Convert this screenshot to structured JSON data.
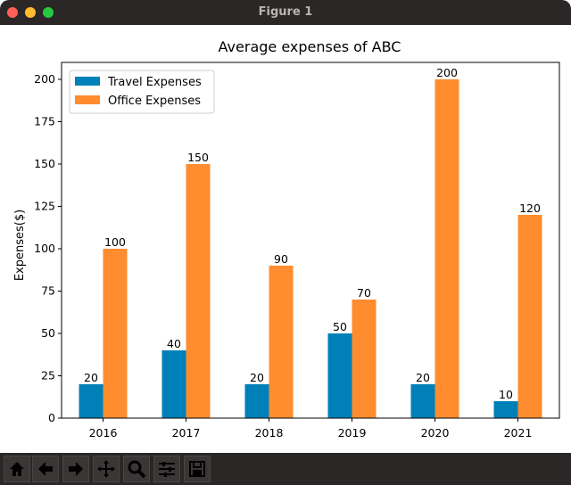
{
  "window": {
    "title": "Figure 1"
  },
  "toolbar": {
    "buttons": [
      "home-icon",
      "back-arrow-icon",
      "forward-arrow-icon",
      "pan-icon",
      "zoom-icon",
      "configure-subplots-icon",
      "save-icon"
    ]
  },
  "chart_data": {
    "type": "bar",
    "title": "Average expenses of ABC",
    "xlabel": "",
    "ylabel": "Expenses($)",
    "categories": [
      "2016",
      "2017",
      "2018",
      "2019",
      "2020",
      "2021"
    ],
    "series": [
      {
        "name": "Travel Expenses",
        "values": [
          20,
          40,
          20,
          50,
          20,
          10
        ],
        "color": "#0080b8"
      },
      {
        "name": "Office Expenses",
        "values": [
          100,
          150,
          90,
          70,
          200,
          120
        ],
        "color": "#ff8c2e"
      }
    ],
    "ylim": [
      0,
      210
    ],
    "yticks": [
      0,
      25,
      50,
      75,
      100,
      125,
      150,
      175,
      200
    ],
    "legend": "top-left",
    "grid": false
  }
}
